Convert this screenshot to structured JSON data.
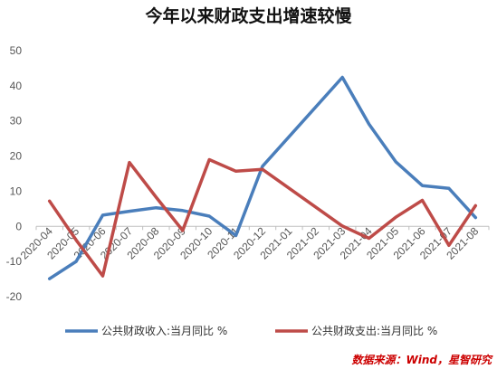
{
  "chart_data": {
    "type": "line",
    "title": "今年以来财政支出增速较慢",
    "categories": [
      "2020-04",
      "2020-05",
      "2020-06",
      "2020-07",
      "2020-08",
      "2020-09",
      "2020-10",
      "2020-11",
      "2020-12",
      "2021-01",
      "2021-02",
      "2021-03",
      "2021-04",
      "2021-05",
      "2021-06",
      "2021-07",
      "2021-08"
    ],
    "series": [
      {
        "name": "公共财政收入:当月同比 %",
        "color": "#4a7ebb",
        "values": [
          -14.9,
          -10.0,
          3.2,
          4.3,
          5.3,
          4.5,
          2.9,
          -2.6,
          17.1,
          null,
          null,
          42.4,
          29.1,
          18.4,
          11.6,
          10.8,
          2.5
        ]
      },
      {
        "name": "公共财政支出:当月同比 %",
        "color": "#be4b48",
        "values": [
          7.2,
          -3.9,
          -14.1,
          18.2,
          8.3,
          -1.2,
          19.0,
          15.7,
          16.2,
          null,
          null,
          0.1,
          -3.4,
          2.6,
          7.4,
          -5.4,
          5.9
        ]
      }
    ],
    "ylim": [
      -20,
      50
    ],
    "yticks": [
      -20,
      -10,
      0,
      10,
      20,
      30,
      40,
      50
    ],
    "legend_position": "bottom",
    "grid": false
  },
  "source_note": "数据来源：Wind，星智研究"
}
